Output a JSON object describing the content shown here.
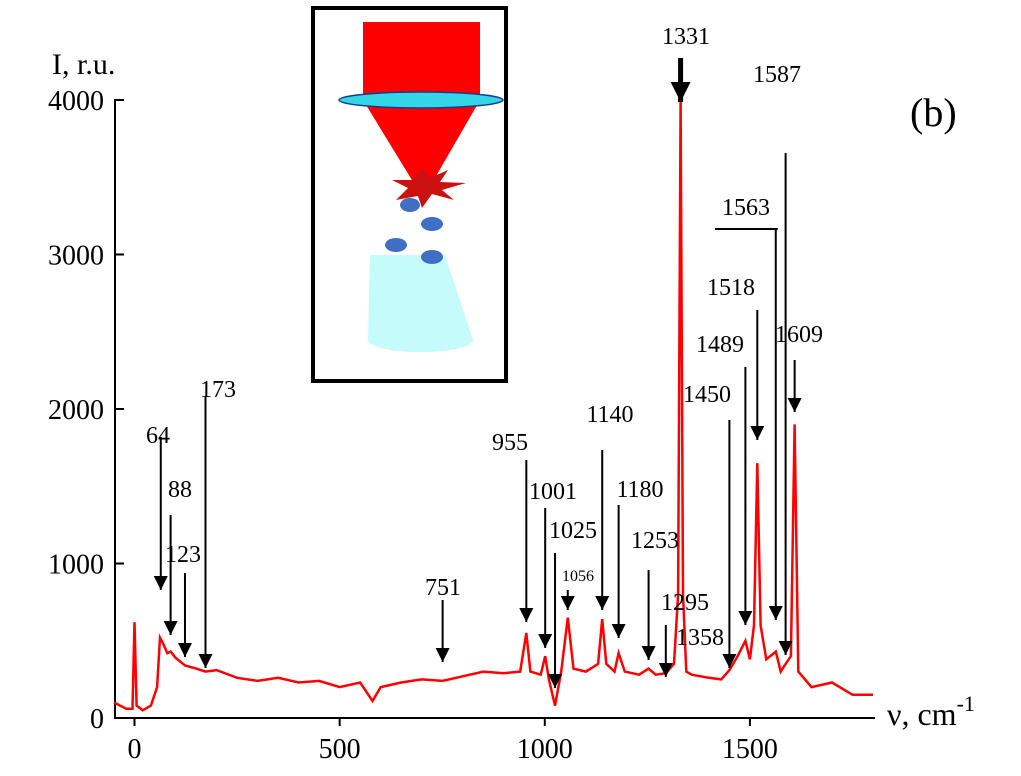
{
  "chart_data": {
    "type": "line",
    "y_label": "I, r.u.",
    "x_label": "ν, cm",
    "x_label_superscript": "-1",
    "panel_label": "(b)",
    "xlim": [
      -50,
      1800
    ],
    "ylim": [
      0,
      4000
    ],
    "xticks": [
      0,
      500,
      1000,
      1500
    ],
    "yticks": [
      0,
      1000,
      2000,
      3000,
      4000
    ],
    "x": [
      -50,
      -20,
      -5,
      0,
      5,
      20,
      40,
      55,
      62,
      70,
      80,
      88,
      100,
      123,
      150,
      173,
      200,
      250,
      300,
      350,
      400,
      450,
      500,
      550,
      580,
      600,
      650,
      700,
      751,
      800,
      850,
      900,
      940,
      955,
      965,
      990,
      1001,
      1010,
      1025,
      1040,
      1056,
      1070,
      1100,
      1130,
      1140,
      1150,
      1170,
      1180,
      1195,
      1230,
      1253,
      1270,
      1295,
      1315,
      1325,
      1331,
      1337,
      1345,
      1358,
      1400,
      1430,
      1450,
      1470,
      1489,
      1500,
      1510,
      1518,
      1526,
      1540,
      1563,
      1575,
      1587,
      1600,
      1609,
      1618,
      1650,
      1700,
      1750,
      1800
    ],
    "series": [
      {
        "color": "#ff0000",
        "values": [
          100,
          60,
          60,
          620,
          80,
          50,
          80,
          200,
          520,
          480,
          420,
          430,
          390,
          340,
          320,
          300,
          310,
          260,
          240,
          260,
          230,
          240,
          200,
          230,
          110,
          200,
          230,
          250,
          240,
          270,
          300,
          290,
          300,
          550,
          300,
          280,
          400,
          250,
          80,
          300,
          650,
          320,
          300,
          350,
          640,
          350,
          300,
          420,
          300,
          280,
          320,
          280,
          290,
          350,
          800,
          3990,
          800,
          300,
          280,
          260,
          250,
          310,
          400,
          500,
          380,
          600,
          1650,
          600,
          380,
          430,
          300,
          350,
          400,
          1900,
          300,
          200,
          230,
          150,
          150
        ]
      }
    ],
    "annotations": [
      64,
      88,
      123,
      173,
      751,
      955,
      1001,
      1025,
      1056,
      1140,
      1180,
      1253,
      1295,
      1358,
      1331,
      1450,
      1489,
      1518,
      1563,
      1587,
      1609
    ]
  }
}
